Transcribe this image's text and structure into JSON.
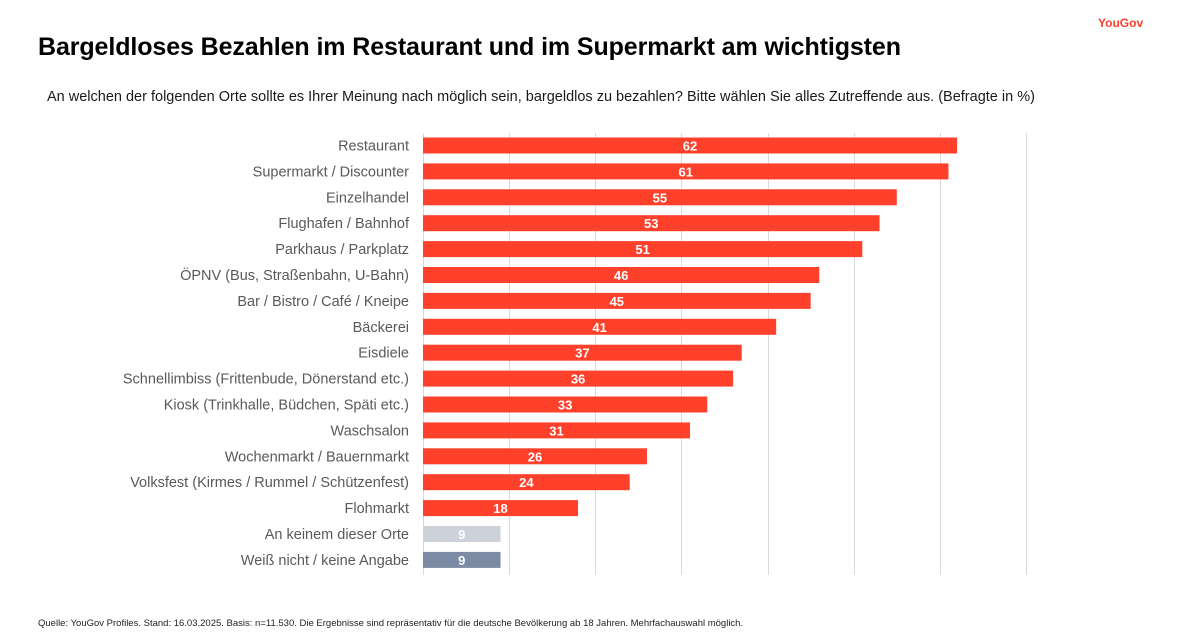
{
  "header": {
    "brand": "YouGov",
    "title": "Bargeldloses Bezahlen im Restaurant und im Supermarkt am wichtigsten",
    "subtitle": "An welchen der folgenden Orte sollte es Ihrer Meinung nach möglich sein, bargeldlos zu bezahlen? Bitte wählen Sie alles Zutreffende aus. (Befragte in %)"
  },
  "footnote": "Quelle: YouGov Profiles. Stand:  16.03.2025. Basis: n=11.530. Die Ergebnisse sind repräsentativ für die deutsche Bevölkerung ab 18 Jahren. Mehrfachauswahl möglich.",
  "colors": {
    "accent": "#ff412c",
    "none": "#ccd1da",
    "dontknow": "#7c8aa3",
    "grid": "#d9d9d9"
  },
  "chart_data": {
    "type": "bar",
    "orientation": "horizontal",
    "title": "Bargeldloses Bezahlen im Restaurant und im Supermarkt am wichtigsten",
    "xlabel": "",
    "ylabel": "",
    "unit": "%",
    "xlim": [
      0,
      70
    ],
    "grid": true,
    "categories": [
      "Restaurant",
      "Supermarkt / Discounter",
      "Einzelhandel",
      "Flughafen / Bahnhof",
      "Parkhaus / Parkplatz",
      "ÖPNV (Bus, Straßenbahn, U-Bahn)",
      "Bar / Bistro / Café / Kneipe",
      "Bäckerei",
      "Eisdiele",
      "Schnellimbiss (Frittenbude, Dönerstand etc.)",
      "Kiosk (Trinkhalle, Büdchen, Späti etc.)",
      "Waschsalon",
      "Wochenmarkt / Bauernmarkt",
      "Volksfest (Kirmes / Rummel / Schützenfest)",
      "Flohmarkt",
      "An keinem dieser Orte",
      "Weiß nicht / keine Angabe"
    ],
    "values": [
      62,
      61,
      55,
      53,
      51,
      46,
      45,
      41,
      37,
      36,
      33,
      31,
      26,
      24,
      18,
      9,
      9
    ],
    "bar_colors": [
      "#ff412c",
      "#ff412c",
      "#ff412c",
      "#ff412c",
      "#ff412c",
      "#ff412c",
      "#ff412c",
      "#ff412c",
      "#ff412c",
      "#ff412c",
      "#ff412c",
      "#ff412c",
      "#ff412c",
      "#ff412c",
      "#ff412c",
      "#ccd1da",
      "#7c8aa3"
    ],
    "data_labels": [
      "62",
      "61",
      "55",
      "53",
      "51",
      "46",
      "45",
      "41",
      "37",
      "36",
      "33",
      "31",
      "26",
      "24",
      "18",
      "9",
      "9"
    ]
  }
}
